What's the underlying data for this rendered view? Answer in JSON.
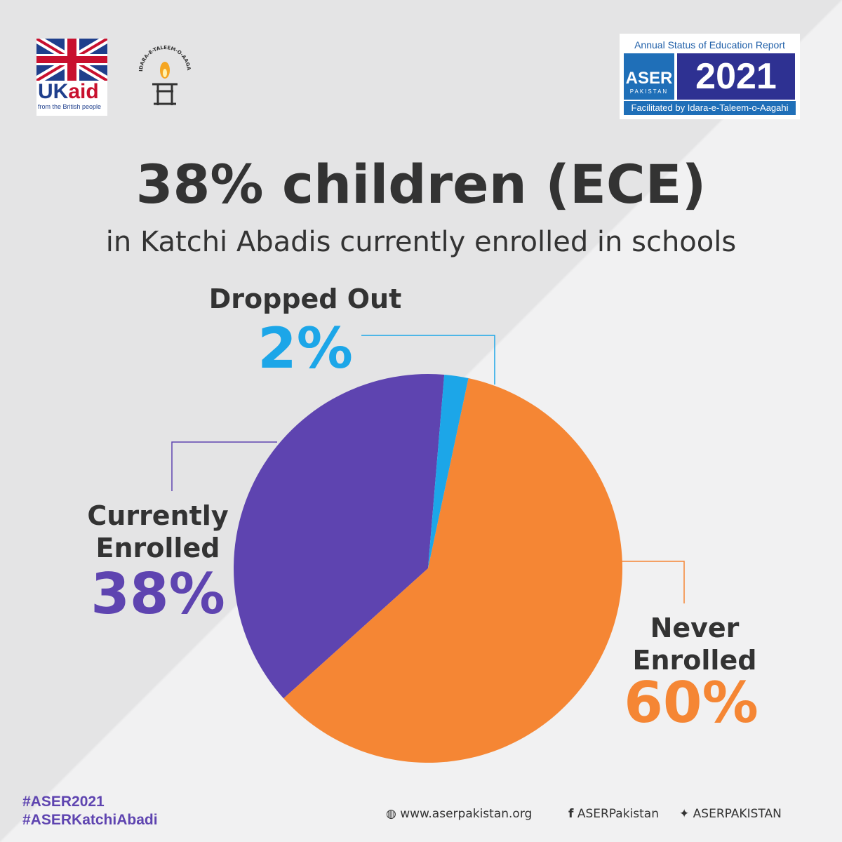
{
  "chart_data": {
    "type": "pie",
    "title": "38% children (ECE)",
    "subtitle": "in Katchi Abadis currently enrolled in schools",
    "categories": [
      "Dropped Out",
      "Never Enrolled",
      "Currently Enrolled"
    ],
    "values": [
      2,
      60,
      38
    ],
    "value_labels": [
      "2%",
      "60%",
      "38%"
    ],
    "colors": [
      "#1ca6e8",
      "#f58634",
      "#5e44b0"
    ]
  },
  "header": {
    "ukaid": {
      "uk": "UK",
      "aid": "aid",
      "tagline": "from the British people"
    },
    "idara": "IDARA-E-TALEEM-O-AAGAHI",
    "aser": {
      "top": "Annual Status of Education Report",
      "name": "ASER",
      "country": "PAKISTAN",
      "year": "2021",
      "bottom": "Facilitated by Idara-e-Taleem-o-Aagahi"
    }
  },
  "footer": {
    "hashtags": [
      "#ASER2021",
      "#ASERKatchiAbadi"
    ],
    "website": "www.aserpakistan.org",
    "facebook": "ASERPakistan",
    "twitter": "ASERPAKISTAN"
  }
}
